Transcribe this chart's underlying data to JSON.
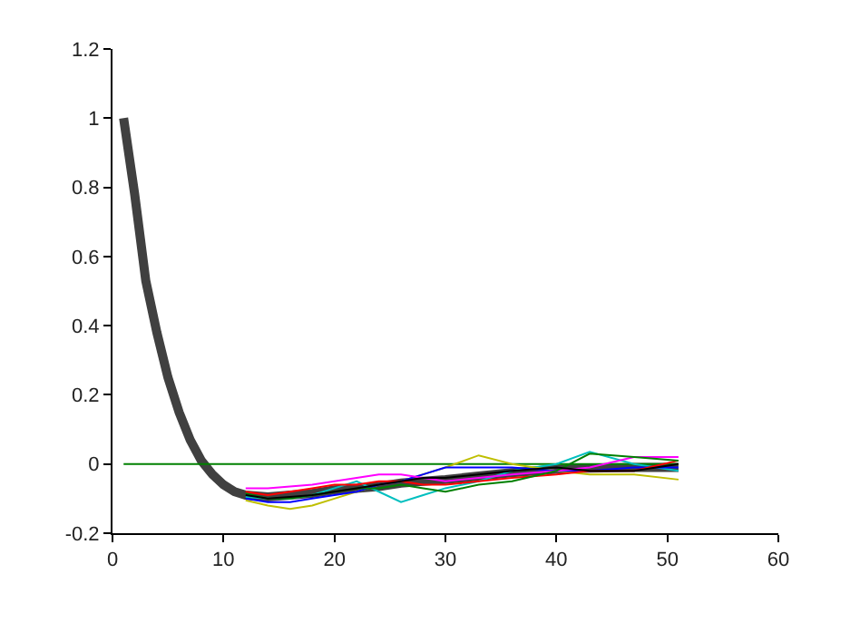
{
  "chart_data": {
    "type": "line",
    "x": [
      1,
      2,
      3,
      4,
      5,
      6,
      7,
      8,
      9,
      10,
      11,
      12,
      14,
      16,
      18,
      20,
      22,
      24,
      26,
      28,
      30,
      33,
      36,
      40,
      43,
      47,
      51
    ],
    "series": [
      {
        "color": "#404040",
        "values": [
          1,
          0.78,
          0.53,
          0.38,
          0.25,
          0.15,
          0.07,
          0.01,
          -0.03,
          -0.06,
          -0.08,
          -0.09,
          -0.095,
          -0.09,
          -0.085,
          -0.075,
          -0.07,
          -0.065,
          -0.055,
          -0.05,
          -0.045,
          -0.035,
          -0.025,
          -0.015,
          -0.012,
          -0.01,
          -0.01
        ]
      },
      {
        "color": "#008000",
        "x": [
          1,
          51
        ],
        "values": [
          0,
          0
        ]
      },
      {
        "color": "#00bfbf",
        "values": [
          null,
          null,
          null,
          null,
          null,
          null,
          null,
          null,
          null,
          null,
          null,
          -0.095,
          -0.1,
          -0.1,
          -0.09,
          -0.07,
          -0.05,
          -0.08,
          -0.11,
          -0.09,
          -0.07,
          -0.05,
          -0.02,
          0.0,
          0.035,
          0.0,
          -0.02
        ]
      },
      {
        "color": "#bfbf00",
        "values": [
          null,
          null,
          null,
          null,
          null,
          null,
          null,
          null,
          null,
          null,
          null,
          -0.105,
          -0.12,
          -0.13,
          -0.12,
          -0.1,
          -0.08,
          -0.06,
          -0.05,
          -0.03,
          -0.01,
          0.025,
          0.0,
          -0.02,
          -0.03,
          -0.03,
          -0.045
        ]
      },
      {
        "color": "#0000ff",
        "values": [
          null,
          null,
          null,
          null,
          null,
          null,
          null,
          null,
          null,
          null,
          null,
          -0.1,
          -0.11,
          -0.11,
          -0.1,
          -0.09,
          -0.08,
          -0.06,
          -0.05,
          -0.03,
          -0.01,
          -0.01,
          -0.01,
          -0.02,
          -0.02,
          -0.01,
          -0.01
        ]
      },
      {
        "color": "#ff0000",
        "values": [
          null,
          null,
          null,
          null,
          null,
          null,
          null,
          null,
          null,
          null,
          null,
          -0.08,
          -0.09,
          -0.08,
          -0.07,
          -0.06,
          -0.06,
          -0.05,
          -0.05,
          -0.06,
          -0.06,
          -0.05,
          -0.04,
          -0.03,
          -0.02,
          -0.02,
          0.01
        ]
      },
      {
        "color": "#ff00ff",
        "values": [
          null,
          null,
          null,
          null,
          null,
          null,
          null,
          null,
          null,
          null,
          null,
          -0.07,
          -0.07,
          -0.065,
          -0.06,
          -0.05,
          -0.04,
          -0.03,
          -0.03,
          -0.04,
          -0.05,
          -0.04,
          -0.03,
          -0.02,
          -0.01,
          0.02,
          0.02
        ]
      },
      {
        "color": "#008000",
        "values": [
          null,
          null,
          null,
          null,
          null,
          null,
          null,
          null,
          null,
          null,
          null,
          -0.085,
          -0.1,
          -0.1,
          -0.09,
          -0.08,
          -0.07,
          -0.07,
          -0.06,
          -0.07,
          -0.08,
          -0.06,
          -0.05,
          -0.02,
          0.03,
          0.02,
          0.01
        ]
      },
      {
        "color": "#000000",
        "values": [
          null,
          null,
          null,
          null,
          null,
          null,
          null,
          null,
          null,
          null,
          null,
          -0.09,
          -0.1,
          -0.095,
          -0.09,
          -0.08,
          -0.07,
          -0.06,
          -0.05,
          -0.04,
          -0.04,
          -0.03,
          -0.02,
          -0.01,
          -0.02,
          -0.02,
          0.0
        ]
      }
    ],
    "xlim": [
      0,
      60
    ],
    "xticks": [
      0,
      10,
      20,
      30,
      40,
      50,
      60
    ],
    "ylim": [
      -0.2,
      1.2
    ],
    "yticks": [
      -0.2,
      0,
      0.2,
      0.4,
      0.6,
      0.8,
      1,
      1.2
    ]
  }
}
